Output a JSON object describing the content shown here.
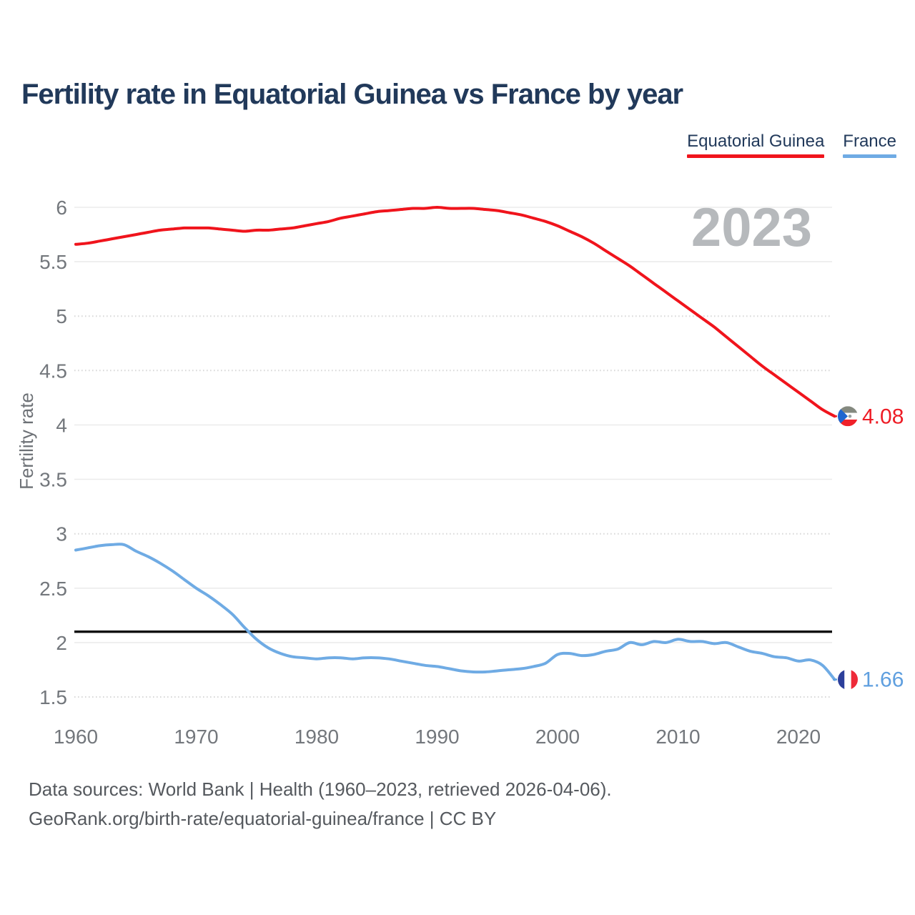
{
  "title": "Fertility rate in Equatorial Guinea vs France by year",
  "watermark": "2023",
  "legend": [
    {
      "label": "Equatorial Guinea",
      "color": "#f0141c"
    },
    {
      "label": "France",
      "color": "#6fabe4"
    }
  ],
  "y_axis": {
    "label": "Fertility rate",
    "ticks": [
      6,
      5.5,
      5,
      4.5,
      4,
      3.5,
      3,
      2.5,
      2,
      1.5
    ],
    "dotted_ticks": [
      5,
      4.5,
      3,
      1.5
    ]
  },
  "x_axis": {
    "ticks": [
      1960,
      1970,
      1980,
      1990,
      2000,
      2010,
      2020
    ]
  },
  "end_labels": [
    {
      "series": "Equatorial Guinea",
      "label": "4.08",
      "value": 4.08,
      "color": "#ee1c25",
      "flag": "equatorial-guinea-flag-icon"
    },
    {
      "series": "France",
      "label": "1.66",
      "value": 1.66,
      "color": "#5f9fdf",
      "flag": "france-flag-icon"
    }
  ],
  "footer": {
    "line1": "Data sources: World Bank | Health (1960–2023, retrieved 2026-04-06).",
    "line2": "GeoRank.org/birth-rate/equatorial-guinea/france | CC BY"
  },
  "chart_data": {
    "type": "line",
    "title": "Fertility rate in Equatorial Guinea vs France by year",
    "xlabel": "",
    "ylabel": "Fertility rate",
    "ylim": [
      1.5,
      6
    ],
    "xlim": [
      1960,
      2023
    ],
    "grid": true,
    "legend_position": "top-right",
    "reference_line_y": 2.1,
    "x": [
      1960,
      1961,
      1962,
      1963,
      1964,
      1965,
      1966,
      1967,
      1968,
      1969,
      1970,
      1971,
      1972,
      1973,
      1974,
      1975,
      1976,
      1977,
      1978,
      1979,
      1980,
      1981,
      1982,
      1983,
      1984,
      1985,
      1986,
      1987,
      1988,
      1989,
      1990,
      1991,
      1992,
      1993,
      1994,
      1995,
      1996,
      1997,
      1998,
      1999,
      2000,
      2001,
      2002,
      2003,
      2004,
      2005,
      2006,
      2007,
      2008,
      2009,
      2010,
      2011,
      2012,
      2013,
      2014,
      2015,
      2016,
      2017,
      2018,
      2019,
      2020,
      2021,
      2022,
      2023
    ],
    "series": [
      {
        "name": "Equatorial Guinea",
        "color": "#f0141c",
        "values": [
          5.66,
          5.67,
          5.69,
          5.71,
          5.73,
          5.75,
          5.77,
          5.79,
          5.8,
          5.81,
          5.81,
          5.81,
          5.8,
          5.79,
          5.78,
          5.79,
          5.79,
          5.8,
          5.81,
          5.83,
          5.85,
          5.87,
          5.9,
          5.92,
          5.94,
          5.96,
          5.97,
          5.98,
          5.99,
          5.99,
          6.0,
          5.99,
          5.99,
          5.99,
          5.98,
          5.97,
          5.95,
          5.93,
          5.9,
          5.87,
          5.83,
          5.78,
          5.73,
          5.67,
          5.6,
          5.53,
          5.46,
          5.38,
          5.3,
          5.22,
          5.14,
          5.06,
          4.98,
          4.9,
          4.81,
          4.72,
          4.63,
          4.54,
          4.46,
          4.38,
          4.3,
          4.22,
          4.14,
          4.08
        ]
      },
      {
        "name": "France",
        "color": "#6fabe4",
        "values": [
          2.85,
          2.87,
          2.89,
          2.9,
          2.9,
          2.84,
          2.79,
          2.73,
          2.66,
          2.58,
          2.5,
          2.43,
          2.35,
          2.26,
          2.14,
          2.03,
          1.95,
          1.9,
          1.87,
          1.86,
          1.85,
          1.86,
          1.86,
          1.85,
          1.86,
          1.86,
          1.85,
          1.83,
          1.81,
          1.79,
          1.78,
          1.76,
          1.74,
          1.73,
          1.73,
          1.74,
          1.75,
          1.76,
          1.78,
          1.81,
          1.89,
          1.9,
          1.88,
          1.89,
          1.92,
          1.94,
          2.0,
          1.98,
          2.01,
          2.0,
          2.03,
          2.01,
          2.01,
          1.99,
          2.0,
          1.96,
          1.92,
          1.9,
          1.87,
          1.86,
          1.83,
          1.84,
          1.79,
          1.66
        ]
      }
    ]
  }
}
